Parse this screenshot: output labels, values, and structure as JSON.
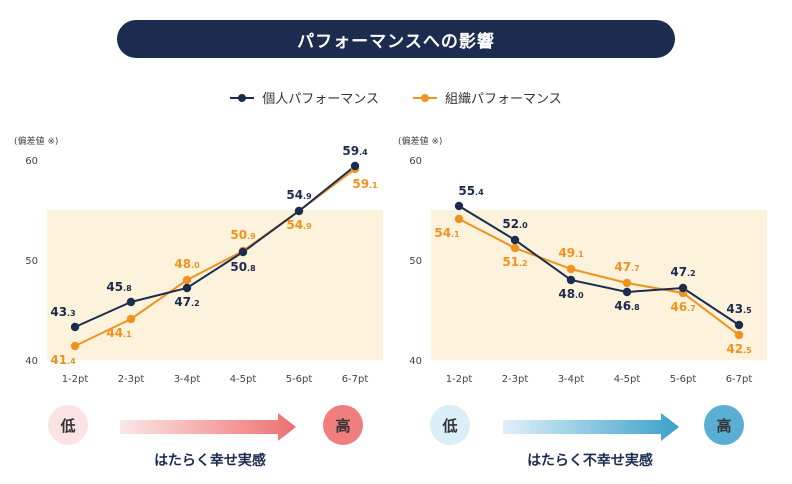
{
  "title": "パフォーマンスへの影響",
  "legend": {
    "personal": "個人パフォーマンス",
    "organization": "組織パフォーマンス"
  },
  "colors": {
    "personal": "#1b2c4f",
    "organization": "#f0921f",
    "band": "#fdf3dd"
  },
  "chart_data": [
    {
      "type": "line",
      "unit_label": "(偏差値 ※)",
      "categories": [
        "1-2pt",
        "2-3pt",
        "3-4pt",
        "4-5pt",
        "5-6pt",
        "6-7pt"
      ],
      "ylim": [
        40,
        60
      ],
      "yticks": [
        40,
        50,
        60
      ],
      "bands": [
        [
          45,
          55
        ],
        [
          40,
          45
        ]
      ],
      "series": [
        {
          "name": "個人パフォーマンス",
          "values": [
            43.3,
            45.8,
            47.2,
            50.8,
            54.9,
            59.4
          ]
        },
        {
          "name": "組織パフォーマンス",
          "values": [
            41.4,
            44.1,
            48.0,
            50.9,
            54.9,
            59.1
          ]
        }
      ]
    },
    {
      "type": "line",
      "unit_label": "(偏差値 ※)",
      "categories": [
        "1-2pt",
        "2-3pt",
        "3-4pt",
        "4-5pt",
        "5-6pt",
        "6-7pt"
      ],
      "ylim": [
        40,
        60
      ],
      "yticks": [
        40,
        50,
        60
      ],
      "bands": [
        [
          45,
          55
        ],
        [
          40,
          45
        ]
      ],
      "series": [
        {
          "name": "個人パフォーマンス",
          "values": [
            55.4,
            52.0,
            48.0,
            46.8,
            47.2,
            43.5
          ]
        },
        {
          "name": "組織パフォーマンス",
          "values": [
            54.1,
            51.2,
            49.1,
            47.7,
            46.7,
            42.5
          ]
        }
      ]
    }
  ],
  "scales": [
    {
      "low": "低",
      "high": "高",
      "caption": "はたらく幸せ実感",
      "low_bg": "#fbe3e3",
      "high_bg": "#f07e7e",
      "arrow_from": "#fbdede",
      "arrow_to": "#ee6f6f"
    },
    {
      "low": "低",
      "high": "高",
      "caption": "はたらく不幸せ実感",
      "low_bg": "#d9eef7",
      "high_bg": "#5aaed3",
      "arrow_from": "#d6ecf6",
      "arrow_to": "#3aa0cc"
    }
  ]
}
